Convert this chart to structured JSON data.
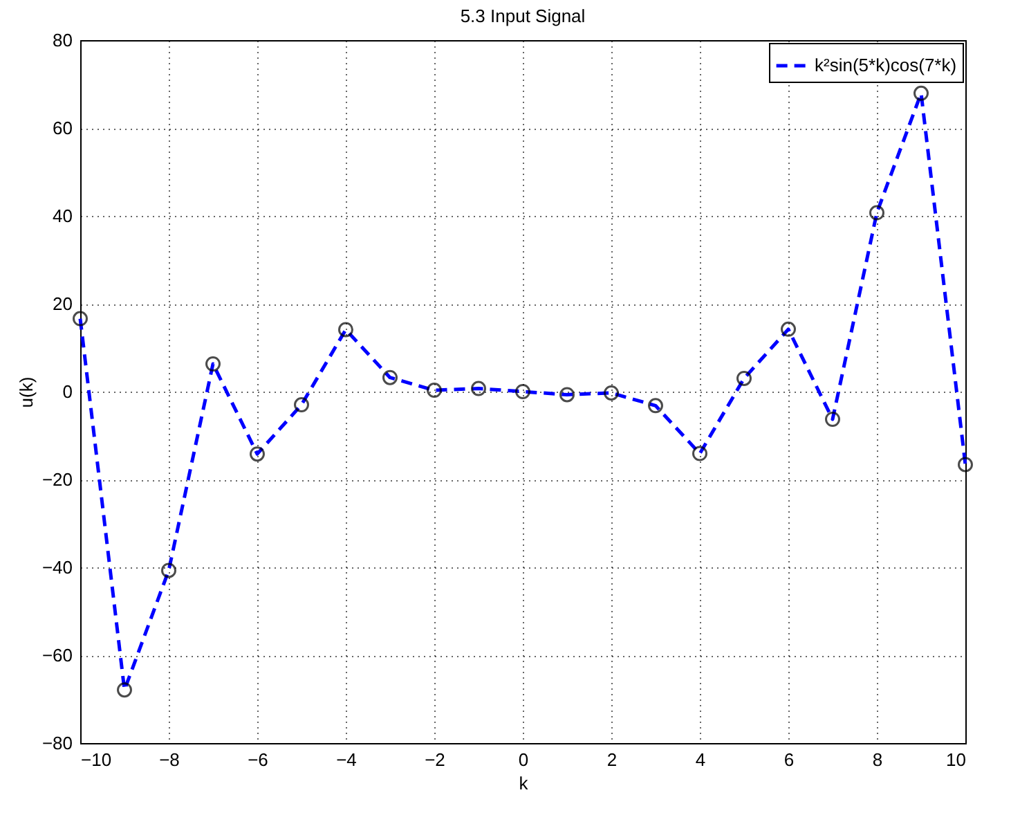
{
  "chart_data": {
    "type": "line",
    "title": "5.3 Input Signal",
    "xlabel": "k",
    "ylabel": "u(k)",
    "x": [
      -10,
      -9,
      -8,
      -7,
      -6,
      -5,
      -4,
      -3,
      -2,
      -1,
      0,
      1,
      2,
      3,
      4,
      5,
      6,
      7,
      8,
      9,
      10
    ],
    "series": [
      {
        "name": "k²sin(5*k)cos(7*k)",
        "color": "#0000ff",
        "values": [
          16.6,
          -67.9,
          -40.7,
          6.3,
          -14.2,
          -3.0,
          14.1,
          3.2,
          0.3,
          0.7,
          0,
          -0.7,
          -0.3,
          -3.2,
          -14.1,
          3.0,
          14.2,
          -6.3,
          40.7,
          67.9,
          -16.6
        ]
      }
    ],
    "xlim": [
      -10,
      10
    ],
    "xticks": [
      -10,
      -8,
      -6,
      -4,
      -2,
      0,
      2,
      4,
      6,
      8,
      10
    ],
    "ylim": [
      -80,
      80
    ],
    "yticks": [
      -80,
      -60,
      -40,
      -20,
      0,
      20,
      40,
      60,
      80
    ],
    "grid": true,
    "legend": "top right",
    "marker": "circle",
    "line_style": "dashed"
  }
}
